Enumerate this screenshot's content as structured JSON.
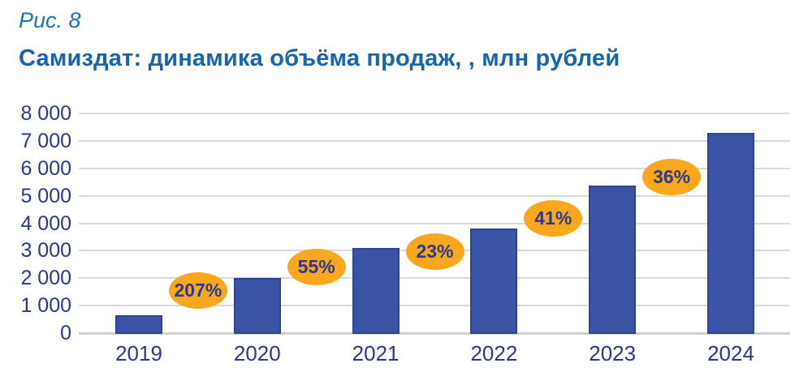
{
  "figure": {
    "label": "Рис. 8",
    "title": "Самиздат: динамика объёма продаж, , млн рублей"
  },
  "chart_data": {
    "type": "bar",
    "title": "Самиздат: динамика объёма продаж, , млн рублей",
    "categories": [
      "2019",
      "2020",
      "2021",
      "2022",
      "2023",
      "2024"
    ],
    "values": [
      650,
      2000,
      3090,
      3800,
      5360,
      7290
    ],
    "growth_labels": [
      "207%",
      "55%",
      "23%",
      "41%",
      "36%"
    ],
    "xlabel": "",
    "ylabel": "млн рублей",
    "ylim": [
      0,
      8000
    ],
    "ytick_step": 1000,
    "ytick_labels": [
      "0",
      "1 000",
      "2 000",
      "3 000",
      "4 000",
      "5 000",
      "6 000",
      "7 000",
      "8 000"
    ],
    "grid": true,
    "legend": "none",
    "colors": {
      "bar_fill": "#3a53a4",
      "bar_border": "#30409b",
      "badge_fill": "#f9a81d",
      "badge_text": "#2b3990",
      "axis_text": "#2b3990",
      "gridline": "#d9d9d9",
      "title_text": "#1566ae",
      "figure_label_text": "#1b75bc"
    }
  }
}
